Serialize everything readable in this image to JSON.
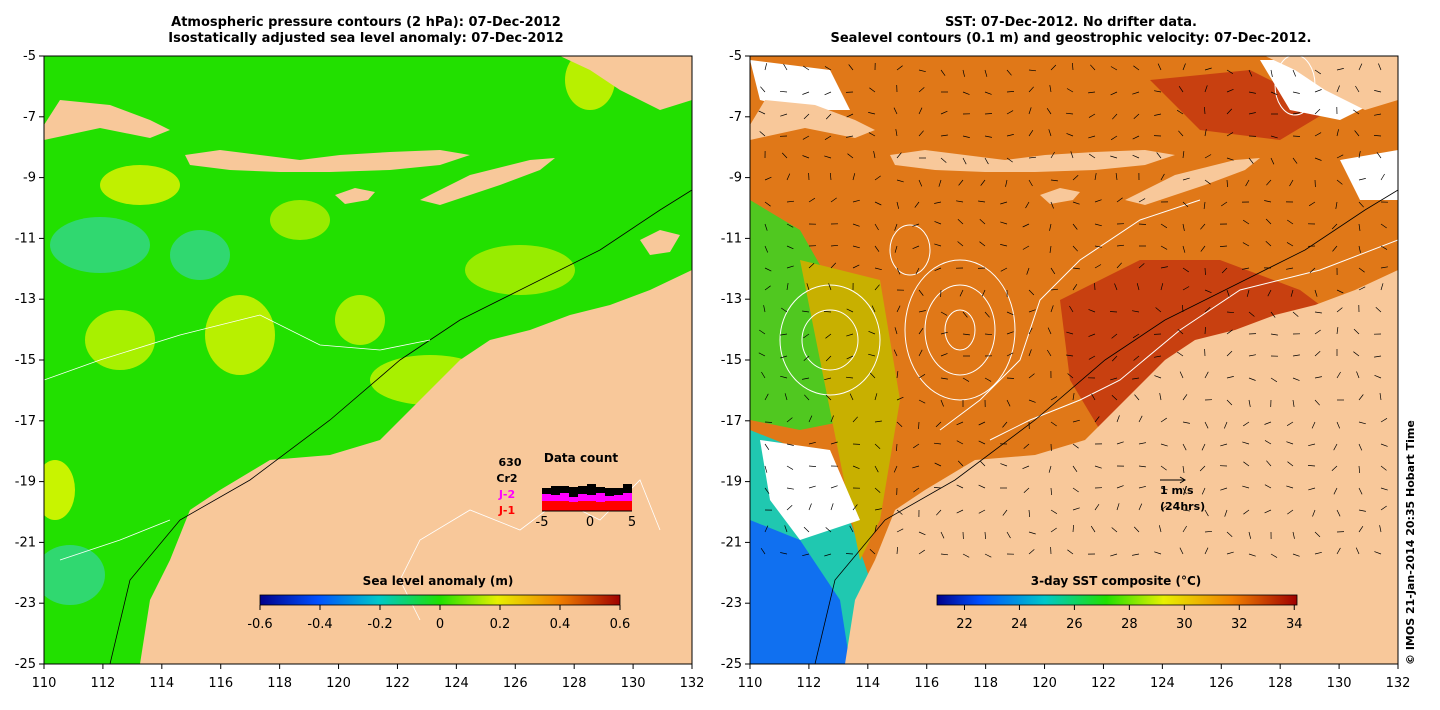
{
  "left_panel": {
    "title_line1": "Atmospheric pressure contours (2 hPa): 07-Dec-2012",
    "title_line2": "Isostatically adjusted sea level anomaly: 07-Dec-2012",
    "colorbar": {
      "label": "Sea level anomaly (m)",
      "ticks": [
        "-0.6",
        "-0.4",
        "-0.2",
        "0",
        "0.2",
        "0.4",
        "0.6"
      ],
      "range": [
        -0.6,
        0.6
      ]
    },
    "data_count": {
      "title": "Data count",
      "total": "630",
      "sat1": "Cr2",
      "sat2": "J-2",
      "sat3": "J-1",
      "color_sat1": "#000000",
      "color_sat2": "#ff00ff",
      "color_sat3": "#ff0000",
      "xticks": [
        "-5",
        "0",
        "5"
      ],
      "j1": [
        10,
        10,
        10,
        9,
        10,
        10,
        9,
        10,
        10,
        10
      ],
      "j2": [
        7,
        6,
        8,
        5,
        7,
        6,
        9,
        5,
        6,
        8
      ],
      "cr2": [
        6,
        9,
        7,
        10,
        8,
        11,
        6,
        8,
        7,
        9
      ]
    }
  },
  "right_panel": {
    "title_line1": "SST: 07-Dec-2012. No drifter data.",
    "title_line2": "Sealevel contours (0.1 m) and geostrophic velocity: 07-Dec-2012.",
    "colorbar": {
      "label": "3-day SST composite (°C)",
      "ticks": [
        "22",
        "24",
        "26",
        "28",
        "30",
        "32",
        "34"
      ],
      "range": [
        21,
        34.1
      ]
    },
    "velocity_scale_label": "1 m/s",
    "velocity_scale_sublabel": "(24hrs)"
  },
  "axes": {
    "lon_range": [
      110,
      132
    ],
    "lat_range": [
      -25,
      -5
    ],
    "lon_ticks": [
      "110",
      "112",
      "114",
      "116",
      "118",
      "120",
      "122",
      "124",
      "126",
      "128",
      "130",
      "132"
    ],
    "lat_ticks": [
      "-5",
      "-7",
      "-9",
      "-11",
      "-13",
      "-15",
      "-17",
      "-19",
      "-21",
      "-23",
      "-25"
    ]
  },
  "credit": "© IMOS 21-Jan-2014 20:35 Hobart Time",
  "colors": {
    "land": "#f8c89a",
    "sla_base": "#22e000",
    "sst_base": "#e07818"
  }
}
